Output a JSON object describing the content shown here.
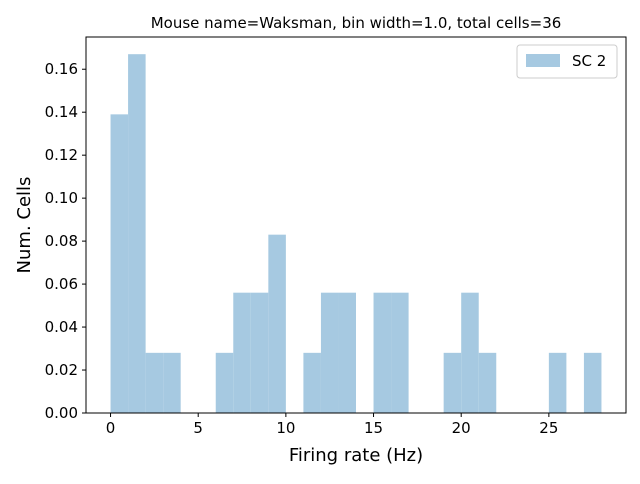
{
  "chart_data": {
    "type": "bar",
    "title": "Mouse name=Waksman, bin width=1.0, total cells=36",
    "xlabel": "Firing rate (Hz)",
    "ylabel": "Num. Cells",
    "bin_width": 1.0,
    "xlim": [
      -1.4,
      29.4
    ],
    "ylim": [
      0,
      0.175
    ],
    "xticks": [
      0,
      5,
      10,
      15,
      20,
      25
    ],
    "xtick_labels": [
      "0",
      "5",
      "10",
      "15",
      "20",
      "25"
    ],
    "yticks": [
      0,
      0.02,
      0.04,
      0.06,
      0.08,
      0.1,
      0.12,
      0.14,
      0.16
    ],
    "ytick_labels": [
      "0.00",
      "0.02",
      "0.04",
      "0.06",
      "0.08",
      "0.10",
      "0.12",
      "0.14",
      "0.16"
    ],
    "grid": false,
    "legend_position": "top-right",
    "series": [
      {
        "name": "SC 2",
        "color": "#a6c9e1",
        "bins": [
          0,
          1,
          2,
          3,
          4,
          5,
          6,
          7,
          8,
          9,
          10,
          11,
          12,
          13,
          14,
          15,
          16,
          17,
          18,
          19,
          20,
          21,
          22,
          23,
          24,
          25,
          26,
          27
        ],
        "values": [
          0.139,
          0.167,
          0.028,
          0.028,
          0,
          0,
          0.028,
          0.056,
          0.056,
          0.083,
          0,
          0.028,
          0.056,
          0.056,
          0,
          0.056,
          0.056,
          0,
          0,
          0.028,
          0.056,
          0.028,
          0,
          0,
          0,
          0.028,
          0,
          0.028
        ]
      }
    ]
  }
}
